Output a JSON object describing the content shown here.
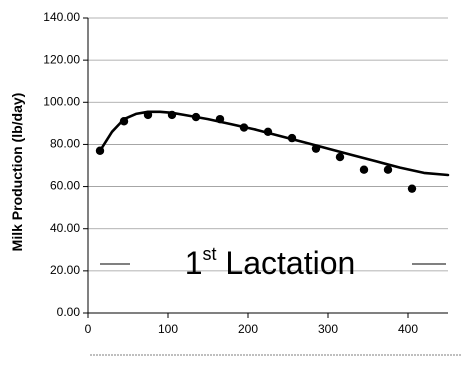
{
  "chart_data": {
    "type": "scatter",
    "title": "",
    "xlabel": "",
    "ylabel": "Milk Production (lb/day)",
    "xlim": [
      0,
      450
    ],
    "ylim": [
      0,
      140
    ],
    "xticks": [
      0,
      100,
      200,
      300,
      400
    ],
    "yticks": [
      0,
      20,
      40,
      60,
      80,
      100,
      120,
      140
    ],
    "ytick_labels": [
      "0.00",
      "20.00",
      "40.00",
      "60.00",
      "80.00",
      "100.00",
      "120.00",
      "140.00"
    ],
    "grid": "horizontal",
    "annotation": {
      "main": "1",
      "superscript": "st",
      "rest": " Lactation"
    },
    "series": [
      {
        "kind": "points",
        "marker": "circle",
        "color": "#000000",
        "x": [
          15,
          45,
          75,
          105,
          135,
          165,
          195,
          225,
          255,
          285,
          315,
          345,
          375,
          405
        ],
        "y": [
          77,
          91,
          94,
          94,
          93,
          92,
          88,
          86,
          83,
          78,
          74,
          68,
          68,
          59
        ]
      },
      {
        "kind": "curve",
        "color": "#000000",
        "x": [
          15,
          30,
          45,
          60,
          75,
          90,
          105,
          120,
          150,
          180,
          210,
          240,
          270,
          300,
          330,
          360,
          390,
          420,
          450
        ],
        "y": [
          77,
          86,
          92,
          94.5,
          95.5,
          95.5,
          95,
          94,
          92,
          89.5,
          87,
          84,
          81,
          78,
          75,
          72,
          69,
          66.5,
          65.5
        ]
      }
    ]
  }
}
